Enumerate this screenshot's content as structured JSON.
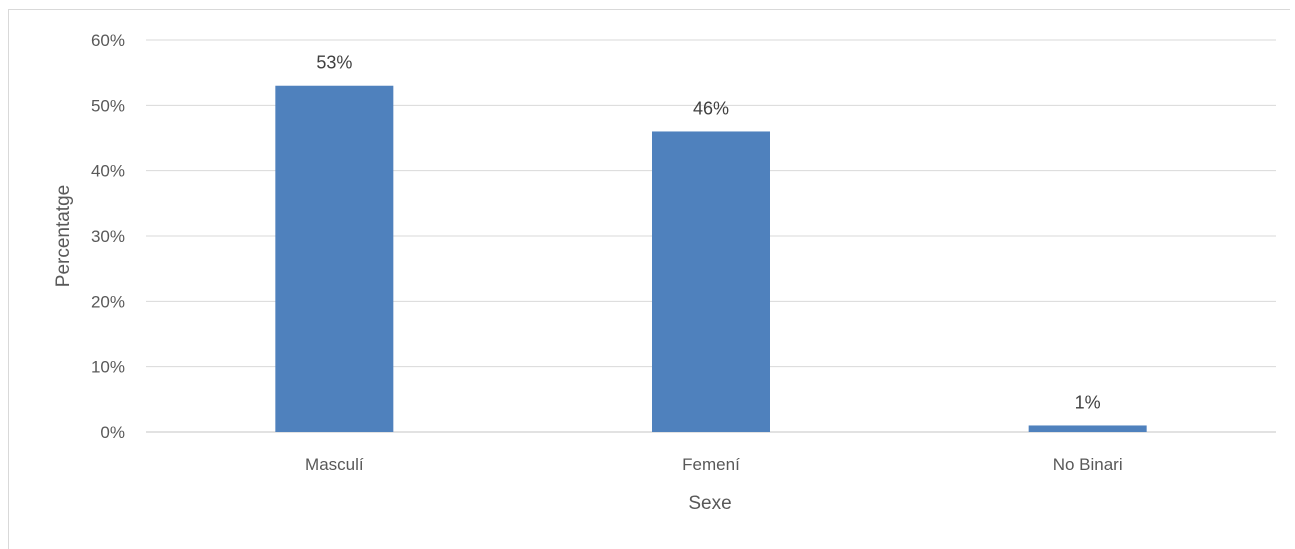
{
  "chart_data": {
    "type": "bar",
    "categories": [
      "Masculí",
      "Femení",
      "No Binari"
    ],
    "values": [
      53,
      46,
      1
    ],
    "data_labels": [
      "53%",
      "46%",
      "1%"
    ],
    "title": "",
    "xlabel": "Sexe",
    "ylabel": "Percentatge",
    "ylim": [
      0,
      60
    ],
    "yticks": [
      0,
      10,
      20,
      30,
      40,
      50,
      60
    ],
    "ytick_labels": [
      "0%",
      "10%",
      "20%",
      "30%",
      "40%",
      "50%",
      "60%"
    ],
    "grid": true,
    "legend": "none",
    "bar_color": "#4f81bd",
    "grid_color": "#d9d9d9"
  }
}
